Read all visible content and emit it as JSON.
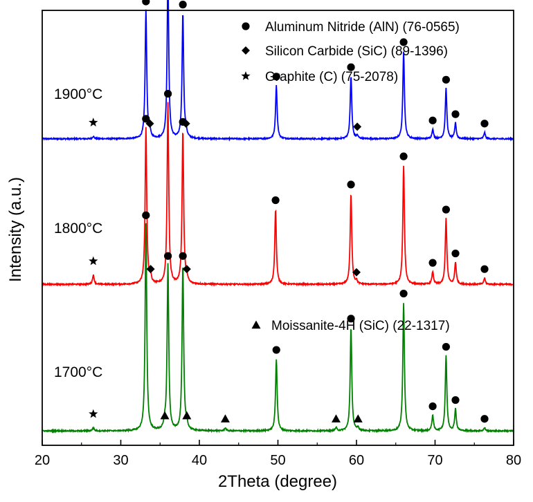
{
  "chart_data": {
    "type": "line",
    "xlabel": "2Theta  (degree)",
    "ylabel": "Intensity  (a.u.)",
    "xlim": [
      20,
      80
    ],
    "xticks": [
      20,
      30,
      40,
      50,
      60,
      70,
      80
    ],
    "yticks_shown": false,
    "grid": false,
    "legend": {
      "placement": "top-right",
      "entries": [
        {
          "marker": "circle",
          "label": "Aluminum Nitride (AlN) (76-0565)"
        },
        {
          "marker": "diamond",
          "label": "Silicon Carbide (SiC) (89-1396)"
        },
        {
          "marker": "star",
          "label": "Graphite (C) (75-2078)"
        }
      ],
      "extra_entry": {
        "marker": "triangle",
        "label": "Moissanite-4H (SiC) (22-1317)"
      }
    },
    "series": [
      {
        "temperature": "1900°C",
        "color": "#0000ff",
        "baseline": 0.07,
        "peaks": [
          {
            "x": 26.5,
            "h": 0.008
          },
          {
            "x": 33.2,
            "h": 0.41,
            "marker": "circle"
          },
          {
            "x": 33.7,
            "h": 0.02,
            "marker": "diamond"
          },
          {
            "x": 36.0,
            "h": 0.53,
            "marker": "circle"
          },
          {
            "x": 37.9,
            "h": 0.4,
            "marker": "circle"
          },
          {
            "x": 38.3,
            "h": 0.02,
            "marker": "diamond"
          },
          {
            "x": 49.8,
            "h": 0.17,
            "marker": "circle"
          },
          {
            "x": 59.3,
            "h": 0.2,
            "marker": "circle"
          },
          {
            "x": 60.1,
            "h": 0.01,
            "marker": "diamond"
          },
          {
            "x": 66.0,
            "h": 0.28,
            "marker": "circle"
          },
          {
            "x": 69.7,
            "h": 0.03,
            "marker": "circle"
          },
          {
            "x": 71.4,
            "h": 0.16,
            "marker": "circle"
          },
          {
            "x": 72.6,
            "h": 0.05,
            "marker": "circle"
          },
          {
            "x": 76.3,
            "h": 0.02,
            "marker": "circle"
          }
        ],
        "star_at": 26.5
      },
      {
        "temperature": "1800°C",
        "color": "#ff0000",
        "baseline": 0.06,
        "peaks": [
          {
            "x": 26.5,
            "h": 0.03
          },
          {
            "x": 33.2,
            "h": 0.5,
            "marker": "circle"
          },
          {
            "x": 33.8,
            "h": 0.02,
            "marker": "diamond"
          },
          {
            "x": 36.0,
            "h": 0.58,
            "marker": "circle"
          },
          {
            "x": 37.9,
            "h": 0.49,
            "marker": "circle"
          },
          {
            "x": 38.4,
            "h": 0.02,
            "marker": "diamond"
          },
          {
            "x": 49.7,
            "h": 0.24,
            "marker": "circle"
          },
          {
            "x": 59.3,
            "h": 0.29,
            "marker": "circle"
          },
          {
            "x": 60.0,
            "h": 0.01,
            "marker": "diamond"
          },
          {
            "x": 66.0,
            "h": 0.38,
            "marker": "circle"
          },
          {
            "x": 69.7,
            "h": 0.04,
            "marker": "circle"
          },
          {
            "x": 71.4,
            "h": 0.21,
            "marker": "circle"
          },
          {
            "x": 72.6,
            "h": 0.07,
            "marker": "circle"
          },
          {
            "x": 76.3,
            "h": 0.02,
            "marker": "circle"
          }
        ],
        "star_at": 26.5
      },
      {
        "temperature": "1700°C",
        "color": "#008000",
        "baseline": 0.06,
        "peaks": [
          {
            "x": 26.5,
            "h": 0.01
          },
          {
            "x": 33.2,
            "h": 0.66,
            "marker": "circle"
          },
          {
            "x": 35.6,
            "h": 0.02,
            "marker": "triangle"
          },
          {
            "x": 36.0,
            "h": 0.53,
            "marker": "circle"
          },
          {
            "x": 37.9,
            "h": 0.53,
            "marker": "circle"
          },
          {
            "x": 38.4,
            "h": 0.02,
            "marker": "triangle"
          },
          {
            "x": 43.3,
            "h": 0.01,
            "marker": "triangle"
          },
          {
            "x": 49.8,
            "h": 0.23,
            "marker": "circle"
          },
          {
            "x": 57.4,
            "h": 0.01,
            "marker": "triangle"
          },
          {
            "x": 59.3,
            "h": 0.33,
            "marker": "circle"
          },
          {
            "x": 60.2,
            "h": 0.01,
            "marker": "triangle"
          },
          {
            "x": 66.0,
            "h": 0.41,
            "marker": "circle"
          },
          {
            "x": 69.7,
            "h": 0.05,
            "marker": "circle"
          },
          {
            "x": 71.4,
            "h": 0.24,
            "marker": "circle"
          },
          {
            "x": 72.6,
            "h": 0.07,
            "marker": "circle"
          },
          {
            "x": 76.3,
            "h": 0.01,
            "marker": "circle"
          }
        ],
        "star_at": 26.5
      }
    ]
  }
}
